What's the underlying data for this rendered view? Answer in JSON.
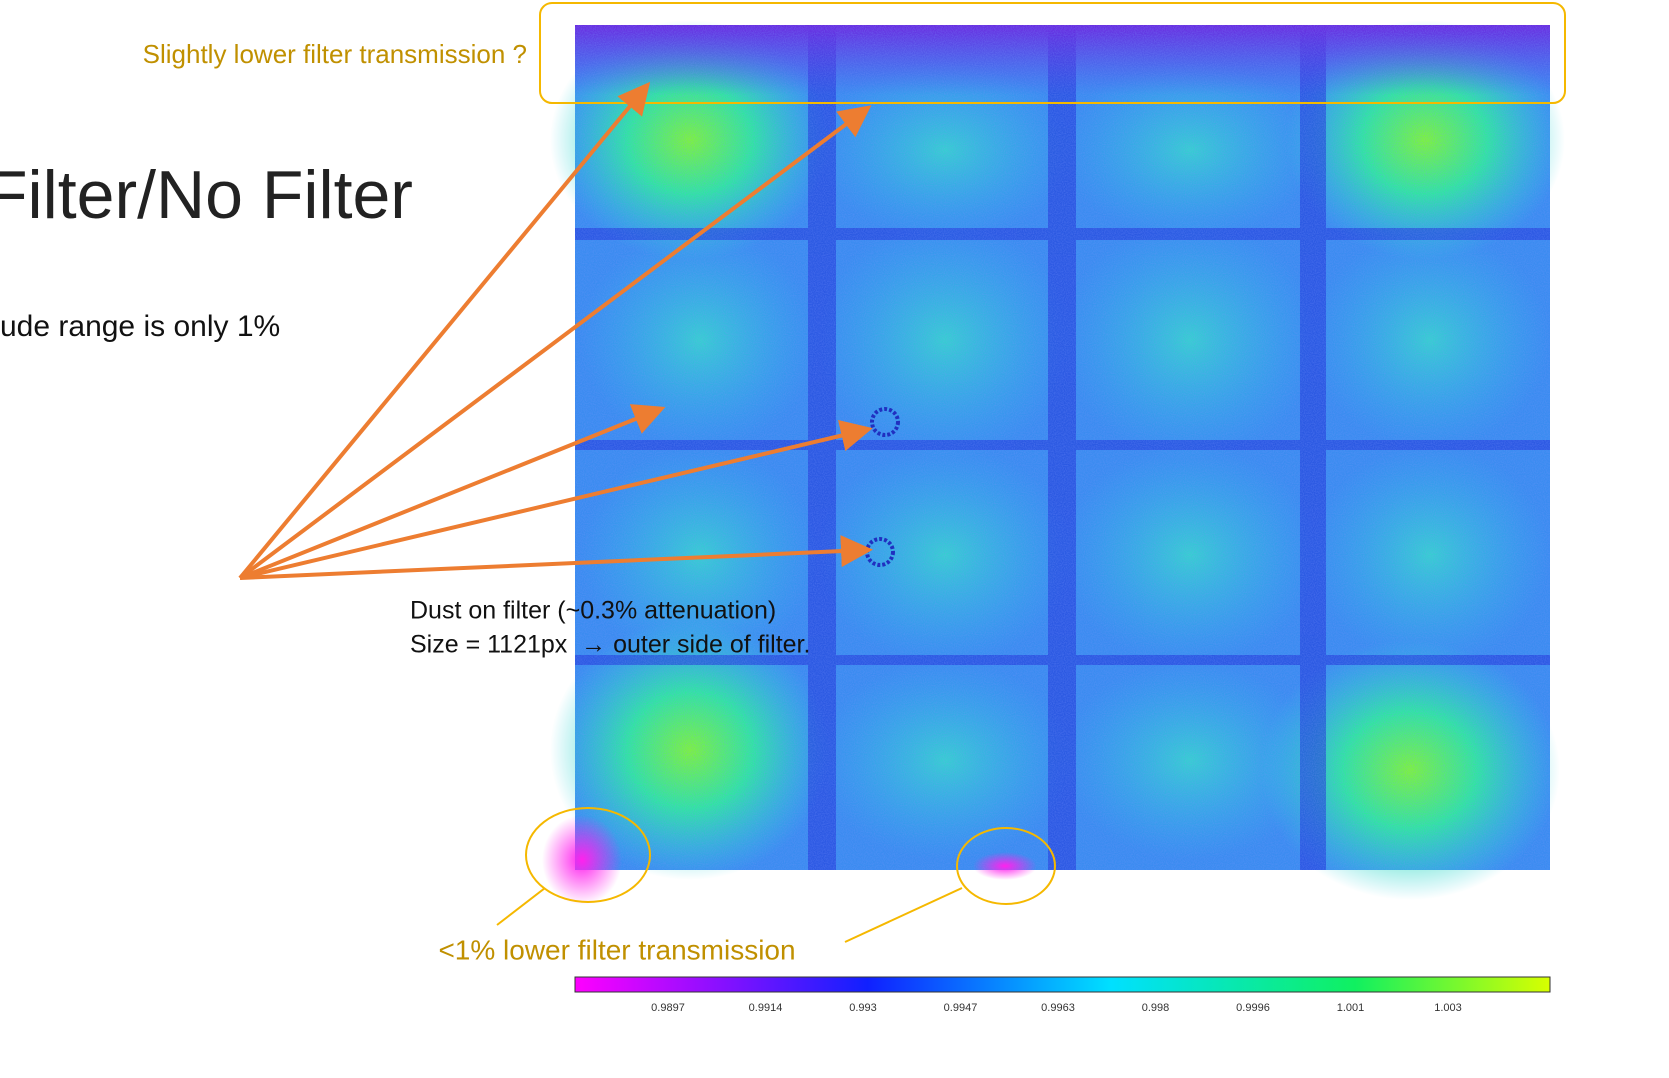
{
  "slide": {
    "title": "Filter/No Filter",
    "bullet": "ude range is only 1%",
    "top_note": "Slightly lower filter transmission ?",
    "dust_note": [
      "Dust on filter (~0.3% attenuation)",
      "Size = 1121px  → outer side of filter."
    ],
    "bottom_note": "<1% lower filter transmission",
    "colorbar": {
      "ticks": [
        0.9897,
        0.9914,
        0.993,
        0.9947,
        0.9963,
        0.998,
        0.9996,
        1.001,
        1.003
      ]
    }
  }
}
